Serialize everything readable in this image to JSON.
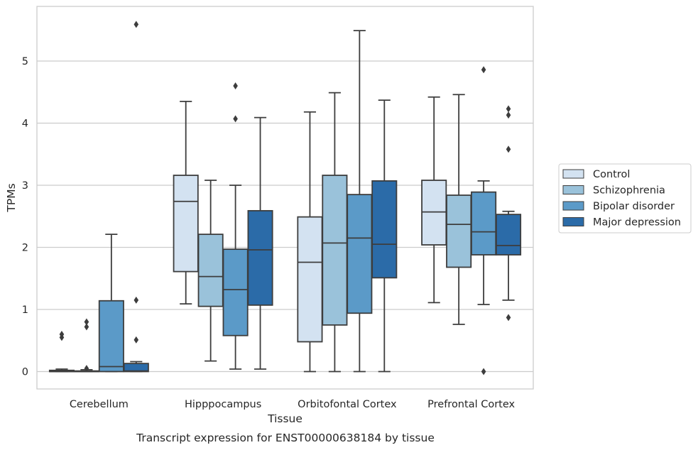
{
  "caption": "Transcript expression for ENST00000638184 by tissue",
  "chart_data": {
    "type": "box",
    "xlabel": "Tissue",
    "ylabel": "TPMs",
    "ylim": [
      -0.28,
      5.88
    ],
    "yticks": [
      0,
      1,
      2,
      3,
      4,
      5
    ],
    "grid": true,
    "legend_position": "right",
    "categories": [
      "Cerebellum",
      "Hipppocampus",
      "Orbitofontal Cortex",
      "Prefrontal Cortex"
    ],
    "series": [
      {
        "name": "Control",
        "color": "#d3e2f1",
        "boxes": [
          {
            "q1": 0.0,
            "median": 0.0,
            "q3": 0.02,
            "whisker_low": 0.0,
            "whisker_high": 0.04,
            "outliers": [
              0.55,
              0.6
            ]
          },
          {
            "q1": 1.61,
            "median": 2.74,
            "q3": 3.16,
            "whisker_low": 1.09,
            "whisker_high": 4.35,
            "outliers": []
          },
          {
            "q1": 0.48,
            "median": 1.76,
            "q3": 2.49,
            "whisker_low": 0.0,
            "whisker_high": 4.18,
            "outliers": []
          },
          {
            "q1": 2.04,
            "median": 2.57,
            "q3": 3.08,
            "whisker_low": 1.11,
            "whisker_high": 4.42,
            "outliers": []
          }
        ]
      },
      {
        "name": "Schizophrenia",
        "color": "#9ac2da",
        "boxes": [
          {
            "q1": 0.0,
            "median": 0.0,
            "q3": 0.01,
            "whisker_low": 0.0,
            "whisker_high": 0.03,
            "outliers": [
              0.05,
              0.72,
              0.8
            ]
          },
          {
            "q1": 1.05,
            "median": 1.53,
            "q3": 2.21,
            "whisker_low": 0.17,
            "whisker_high": 3.08,
            "outliers": []
          },
          {
            "q1": 0.75,
            "median": 2.07,
            "q3": 3.16,
            "whisker_low": 0.0,
            "whisker_high": 4.49,
            "outliers": []
          },
          {
            "q1": 1.68,
            "median": 2.37,
            "q3": 2.84,
            "whisker_low": 0.76,
            "whisker_high": 4.46,
            "outliers": []
          }
        ]
      },
      {
        "name": "Bipolar disorder",
        "color": "#5b9ac8",
        "boxes": [
          {
            "q1": 0.0,
            "median": 0.08,
            "q3": 1.14,
            "whisker_low": 0.0,
            "whisker_high": 2.21,
            "outliers": []
          },
          {
            "q1": 0.58,
            "median": 1.32,
            "q3": 1.97,
            "whisker_low": 0.04,
            "whisker_high": 3.0,
            "outliers": [
              4.07,
              4.6
            ]
          },
          {
            "q1": 0.94,
            "median": 2.15,
            "q3": 2.85,
            "whisker_low": 0.0,
            "whisker_high": 5.49,
            "outliers": []
          },
          {
            "q1": 1.88,
            "median": 2.25,
            "q3": 2.89,
            "whisker_low": 1.08,
            "whisker_high": 3.07,
            "outliers": [
              0.0,
              4.86
            ]
          }
        ]
      },
      {
        "name": "Major depression",
        "color": "#2b6ba8",
        "boxes": [
          {
            "q1": 0.0,
            "median": 0.01,
            "q3": 0.13,
            "whisker_low": 0.0,
            "whisker_high": 0.16,
            "outliers": [
              0.51,
              1.15,
              5.59
            ]
          },
          {
            "q1": 1.07,
            "median": 1.96,
            "q3": 2.59,
            "whisker_low": 0.04,
            "whisker_high": 4.09,
            "outliers": []
          },
          {
            "q1": 1.51,
            "median": 2.05,
            "q3": 3.07,
            "whisker_low": 0.0,
            "whisker_high": 4.37,
            "outliers": []
          },
          {
            "q1": 1.88,
            "median": 2.03,
            "q3": 2.53,
            "whisker_low": 1.15,
            "whisker_high": 2.58,
            "outliers": [
              0.87,
              3.58,
              4.13,
              4.23
            ]
          }
        ]
      }
    ]
  }
}
